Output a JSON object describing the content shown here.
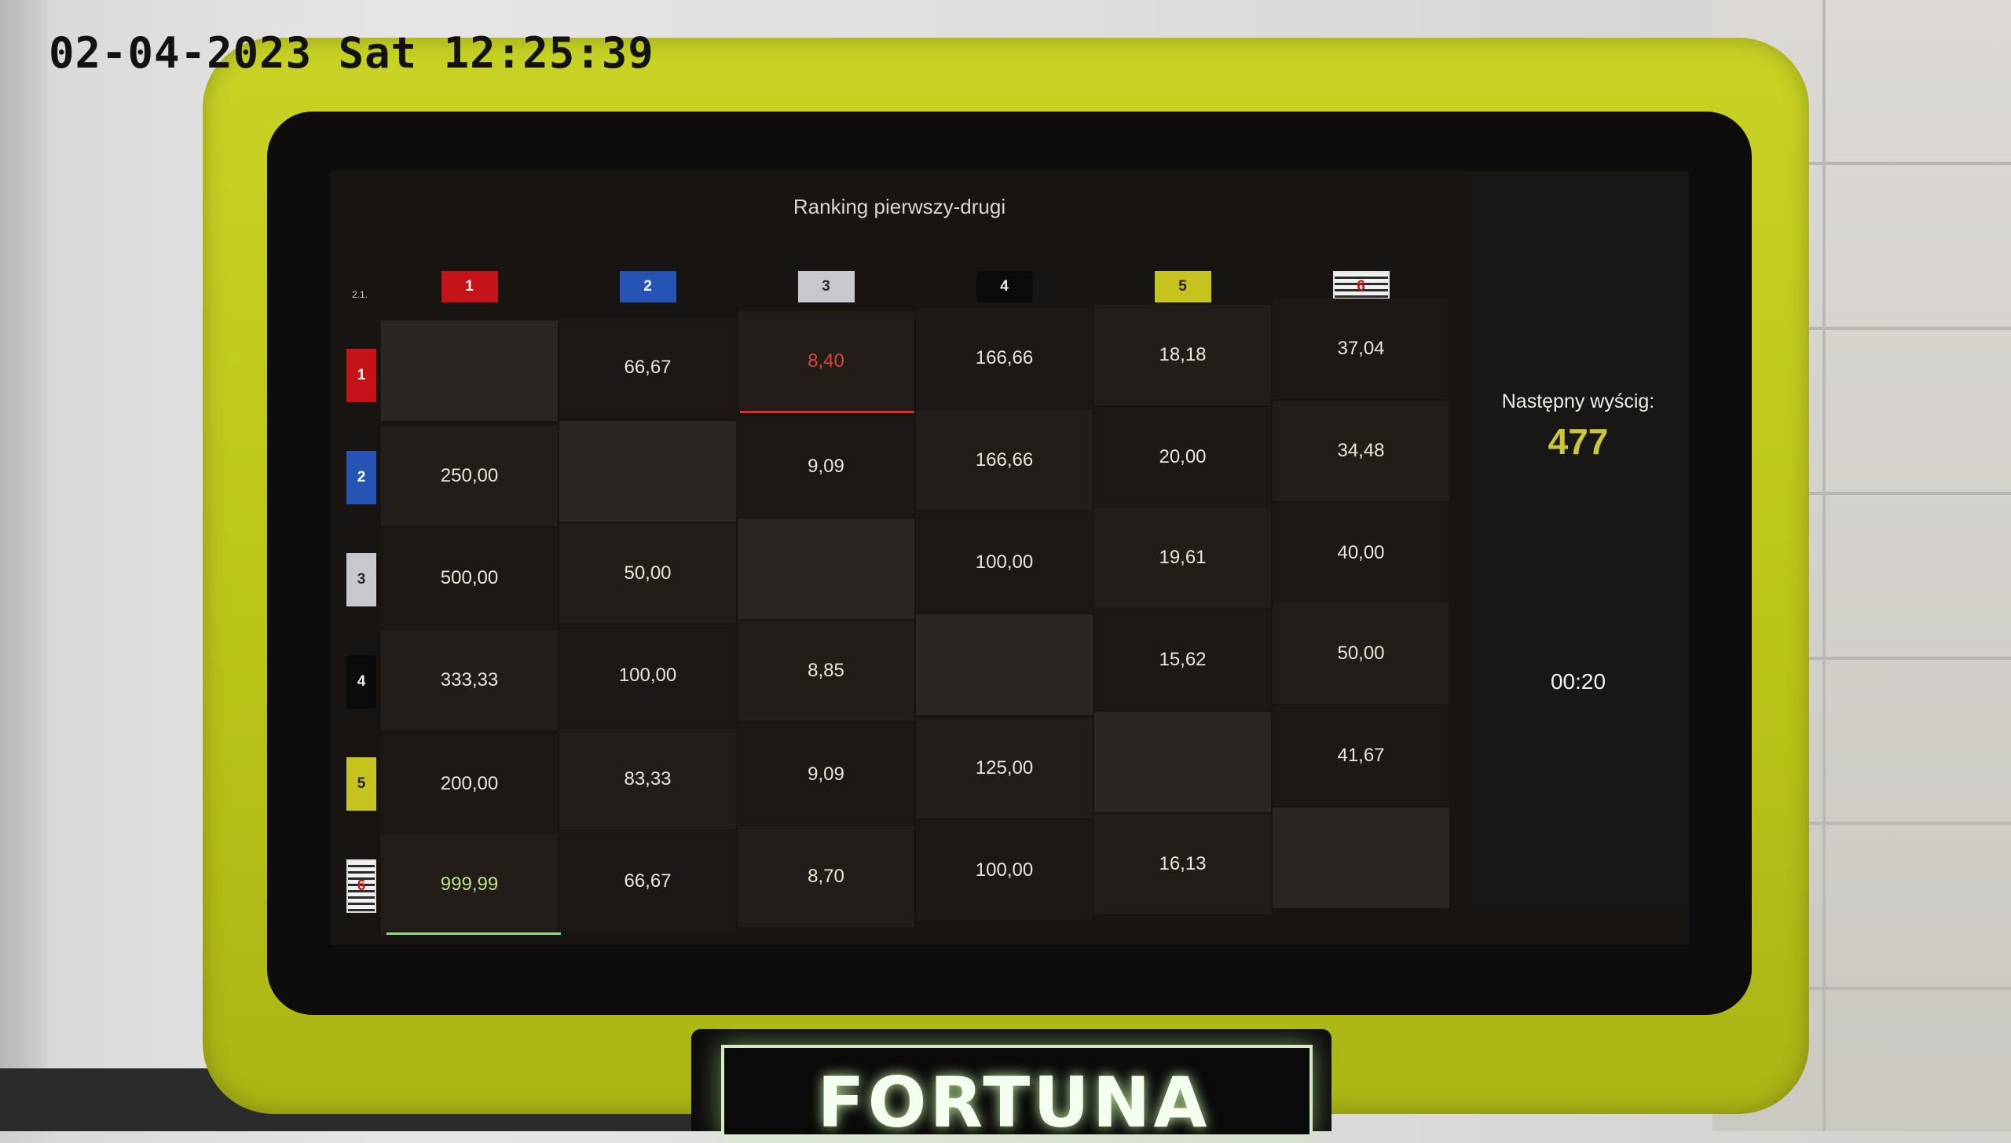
{
  "camera_timestamp": "02-04-2023 Sat 12:25:39",
  "board": {
    "title": "Ranking pierwszy-drugi",
    "corner_mark": "2.1.",
    "columns": [
      "1",
      "2",
      "3",
      "4",
      "5",
      "6"
    ],
    "rows": [
      "1",
      "2",
      "3",
      "4",
      "5",
      "6"
    ],
    "cells": [
      [
        "",
        "66,67",
        "8,40",
        "166,66",
        "18,18",
        "37,04"
      ],
      [
        "250,00",
        "",
        "9,09",
        "166,66",
        "20,00",
        "34,48"
      ],
      [
        "500,00",
        "50,00",
        "",
        "100,00",
        "19,61",
        "40,00"
      ],
      [
        "333,33",
        "100,00",
        "8,85",
        "",
        "15,62",
        "50,00"
      ],
      [
        "200,00",
        "83,33",
        "9,09",
        "125,00",
        "",
        "41,67"
      ],
      [
        "999,99",
        "66,67",
        "8,70",
        "100,00",
        "16,13",
        ""
      ]
    ],
    "colors": {
      "red": "#c4141a",
      "blue": "#2554b5",
      "white": "#c7c7cd",
      "black": "#0b0b0b",
      "yellow": "#c6c21e",
      "striped": "#f0f0f0"
    }
  },
  "side": {
    "next_race_label": "Następny wyścig:",
    "next_race_number": "477",
    "countdown": "00:20"
  },
  "brand": {
    "logo_text": "FORTUNA",
    "frame_color": "#c8d324"
  }
}
